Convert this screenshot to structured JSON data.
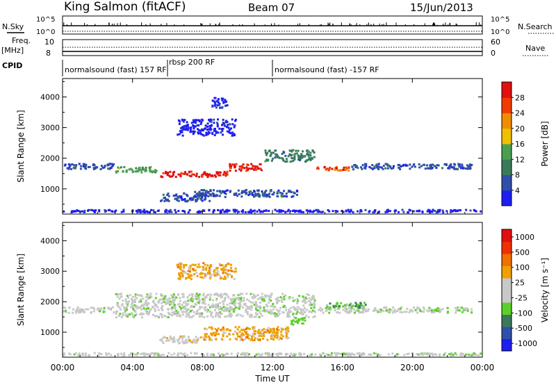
{
  "header": {
    "station": "King Salmon (fitACF)",
    "beam": "Beam 07",
    "date": "15/Jun/2013"
  },
  "summary": {
    "nsky_label": "N.Sky",
    "nsearch_label": "N.Search",
    "nsky_ticks_left": [
      "10^5",
      "10^0"
    ],
    "nsky_ticks_right": [
      "10^5",
      "10^0"
    ],
    "freq_label": "Freq.",
    "freq_unit": "[MHz]",
    "freq_ticks": [
      "10",
      "8"
    ],
    "nave_label": "Nave",
    "nave_ticks": [
      "60",
      "0"
    ],
    "cpid_label": "CPID",
    "cpid_segments": [
      {
        "text": "normalsound (fast) 157 RF",
        "start_h": 0,
        "end_h": 6
      },
      {
        "text": "rbsp 200 RF",
        "start_h": 6,
        "end_h": 12
      },
      {
        "text": "normalsound (fast) -157 RF",
        "start_h": 12,
        "end_h": 24
      }
    ]
  },
  "colors": {
    "power": [
      "#1e1ef0",
      "#2f4fa8",
      "#3a7a5a",
      "#4aa050",
      "#f0c000",
      "#f08c00",
      "#f03c00",
      "#e01010"
    ],
    "velocity": [
      "#1e1ef0",
      "#2f4fa8",
      "#3a7a5a",
      "#5cd02a",
      "#c8c8c8",
      "#c8c8c8",
      "#f0a000",
      "#f07000",
      "#f03000",
      "#e01010"
    ]
  },
  "chart_data": [
    {
      "type": "heatmap",
      "name": "power",
      "xlabel": "Time UT",
      "ylabel": "Slant Range [km]",
      "x_ticks": [
        "00:00",
        "04:00",
        "08:00",
        "12:00",
        "16:00",
        "20:00",
        "00:00"
      ],
      "xlim_hours": [
        0,
        24
      ],
      "y_ticks": [
        1000,
        2000,
        3000,
        4000
      ],
      "ylim": [
        180,
        4600
      ],
      "colorbar_label": "Power [dB]",
      "colorbar_ticks": [
        "28",
        "24",
        "20",
        "16",
        "12",
        "8",
        "4"
      ],
      "regions": [
        {
          "t0": 0.0,
          "t1": 3.0,
          "r0": 1600,
          "r1": 1850,
          "level": 1
        },
        {
          "t0": 3.0,
          "t1": 5.5,
          "r0": 1500,
          "r1": 1750,
          "level": 3
        },
        {
          "t0": 5.5,
          "t1": 9.5,
          "r0": 1350,
          "r1": 1600,
          "level": 7
        },
        {
          "t0": 9.5,
          "t1": 11.5,
          "r0": 1550,
          "r1": 1850,
          "level": 7
        },
        {
          "t0": 11.5,
          "t1": 14.5,
          "r0": 1850,
          "r1": 2300,
          "level": 2
        },
        {
          "t0": 14.5,
          "t1": 16.5,
          "r0": 1550,
          "r1": 1750,
          "level": 6
        },
        {
          "t0": 16.5,
          "t1": 23.5,
          "r0": 1600,
          "r1": 1850,
          "level": 1
        },
        {
          "t0": 5.5,
          "t1": 8.5,
          "r0": 550,
          "r1": 900,
          "level": 1
        },
        {
          "t0": 7.5,
          "t1": 13.5,
          "r0": 700,
          "r1": 1000,
          "level": 1
        },
        {
          "t0": 6.5,
          "t1": 10.0,
          "r0": 2700,
          "r1": 3300,
          "level": 0
        },
        {
          "t0": 8.5,
          "t1": 9.5,
          "r0": 3600,
          "r1": 4000,
          "level": 0
        },
        {
          "t0": 0.0,
          "t1": 24.0,
          "r0": 200,
          "r1": 350,
          "level": 0
        }
      ]
    },
    {
      "type": "heatmap",
      "name": "velocity",
      "xlabel": "Time UT",
      "ylabel": "Slant Range [km]",
      "x_ticks": [
        "00:00",
        "04:00",
        "08:00",
        "12:00",
        "16:00",
        "20:00",
        "00:00"
      ],
      "xlim_hours": [
        0,
        24
      ],
      "y_ticks": [
        1000,
        2000,
        3000,
        4000
      ],
      "ylim": [
        180,
        4600
      ],
      "colorbar_label": "Velocity [m s⁻¹]",
      "colorbar_ticks": [
        "1000",
        "500",
        "100",
        "25",
        "-25",
        "-100",
        "-500",
        "-1000"
      ],
      "regions": [
        {
          "t0": 0.0,
          "t1": 3.0,
          "r0": 1600,
          "r1": 1850,
          "level": 4
        },
        {
          "t0": 3.0,
          "t1": 14.5,
          "r0": 1450,
          "r1": 2300,
          "level": 4
        },
        {
          "t0": 14.5,
          "t1": 23.5,
          "r0": 1600,
          "r1": 1850,
          "level": 4
        },
        {
          "t0": 15.0,
          "t1": 17.5,
          "r0": 1750,
          "r1": 2000,
          "level": 3
        },
        {
          "t0": 13.0,
          "t1": 14.0,
          "r0": 1200,
          "r1": 1500,
          "level": 3
        },
        {
          "t0": 8.0,
          "t1": 13.0,
          "r0": 700,
          "r1": 1200,
          "level": 6
        },
        {
          "t0": 5.5,
          "t1": 8.0,
          "r0": 600,
          "r1": 900,
          "level": 5
        },
        {
          "t0": 6.5,
          "t1": 10.0,
          "r0": 2700,
          "r1": 3300,
          "level": 6
        },
        {
          "t0": 0.0,
          "t1": 24.0,
          "r0": 200,
          "r1": 350,
          "level": 4
        }
      ]
    }
  ]
}
